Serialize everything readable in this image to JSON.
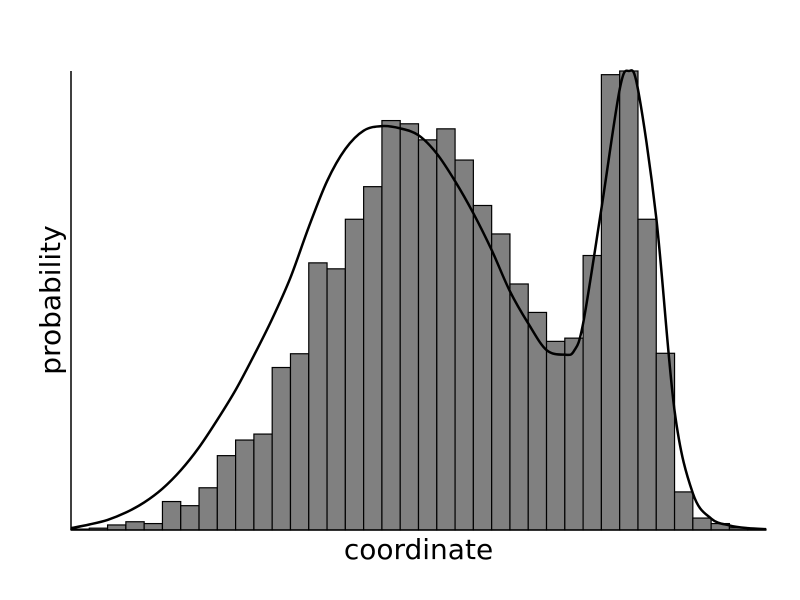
{
  "chart_data": {
    "type": "bar",
    "title": "",
    "xlabel": "coordinate",
    "ylabel": "probability",
    "xlim": [
      0,
      38
    ],
    "ylim": [
      0,
      1.0
    ],
    "grid": false,
    "ticks_shown": false,
    "bar_color": "#808080",
    "edge_color": "#000000",
    "histogram": {
      "bin_edges": [
        0,
        1,
        2,
        3,
        4,
        5,
        6,
        7,
        8,
        9,
        10,
        11,
        12,
        13,
        14,
        15,
        16,
        17,
        18,
        19,
        20,
        21,
        22,
        23,
        24,
        25,
        26,
        27,
        28,
        29,
        30,
        31,
        32,
        33,
        34,
        35,
        36,
        37,
        38
      ],
      "values": [
        0.002,
        0.004,
        0.011,
        0.018,
        0.014,
        0.062,
        0.053,
        0.092,
        0.162,
        0.196,
        0.209,
        0.354,
        0.384,
        0.582,
        0.569,
        0.677,
        0.748,
        0.892,
        0.885,
        0.85,
        0.874,
        0.806,
        0.707,
        0.645,
        0.536,
        0.474,
        0.411,
        0.418,
        0.598,
        0.992,
        1.0,
        0.677,
        0.385,
        0.083,
        0.026,
        0.014,
        0.005,
        0.002
      ]
    },
    "series": [
      {
        "type": "line",
        "x": [
          0,
          1,
          2,
          3,
          4,
          5,
          6,
          7,
          8,
          9,
          10,
          11,
          12,
          13,
          14,
          15,
          16,
          17,
          18,
          19,
          20,
          21,
          22,
          23,
          24,
          25,
          26,
          27,
          27.5,
          28,
          29,
          30,
          30.5,
          31,
          32,
          33,
          34,
          35,
          36,
          37,
          38
        ],
        "values": [
          0.004,
          0.012,
          0.022,
          0.038,
          0.06,
          0.09,
          0.13,
          0.18,
          0.24,
          0.305,
          0.38,
          0.46,
          0.55,
          0.66,
          0.76,
          0.83,
          0.87,
          0.88,
          0.875,
          0.86,
          0.82,
          0.76,
          0.69,
          0.61,
          0.52,
          0.45,
          0.392,
          0.382,
          0.39,
          0.45,
          0.7,
          0.96,
          1.0,
          0.96,
          0.68,
          0.26,
          0.08,
          0.025,
          0.01,
          0.004,
          0.002
        ]
      }
    ]
  }
}
